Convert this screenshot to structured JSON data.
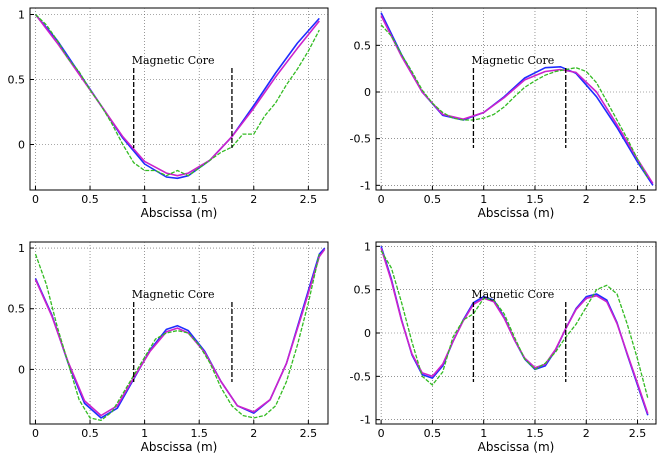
{
  "chart_data": [
    {
      "type": "line",
      "xlabel": "Abscissa (m)",
      "ylabel": "",
      "xlim": [
        -0.05,
        2.68
      ],
      "ylim": [
        -0.35,
        1.05
      ],
      "xticks": [
        "0",
        "0.5",
        "1",
        "1.5",
        "2",
        "2.5"
      ],
      "yticks": [
        "0",
        "0.5",
        "1"
      ],
      "grid": true,
      "annotation": {
        "text": "Magnetic Core",
        "x_start": 0.9,
        "x_end": 1.8
      },
      "series": [
        {
          "color": "#1f2cff",
          "x": [
            0,
            0.2,
            0.4,
            0.6,
            0.8,
            1.0,
            1.2,
            1.3,
            1.4,
            1.6,
            1.8,
            2.0,
            2.2,
            2.4,
            2.6
          ],
          "y": [
            1.0,
            0.8,
            0.55,
            0.3,
            0.05,
            -0.15,
            -0.25,
            -0.26,
            -0.24,
            -0.12,
            0.06,
            0.3,
            0.55,
            0.78,
            0.97
          ]
        },
        {
          "color": "#cc22cc",
          "x": [
            0,
            0.2,
            0.4,
            0.6,
            0.8,
            1.0,
            1.2,
            1.3,
            1.4,
            1.6,
            1.8,
            2.0,
            2.2,
            2.4,
            2.6
          ],
          "y": [
            1.0,
            0.78,
            0.54,
            0.3,
            0.06,
            -0.13,
            -0.22,
            -0.24,
            -0.22,
            -0.12,
            0.06,
            0.28,
            0.52,
            0.74,
            0.95
          ]
        },
        {
          "color": "#33bb22",
          "dashed": true,
          "x": [
            0,
            0.1,
            0.2,
            0.3,
            0.4,
            0.5,
            0.6,
            0.7,
            0.8,
            0.9,
            1.0,
            1.1,
            1.2,
            1.3,
            1.4,
            1.5,
            1.6,
            1.7,
            1.8,
            1.9,
            2.0,
            2.1,
            2.2,
            2.3,
            2.4,
            2.5,
            2.6
          ],
          "y": [
            1.0,
            0.92,
            0.8,
            0.66,
            0.56,
            0.42,
            0.3,
            0.16,
            0.0,
            -0.14,
            -0.2,
            -0.2,
            -0.24,
            -0.2,
            -0.24,
            -0.18,
            -0.12,
            -0.06,
            -0.02,
            0.08,
            0.08,
            0.22,
            0.32,
            0.46,
            0.58,
            0.72,
            0.88
          ]
        }
      ]
    },
    {
      "type": "line",
      "xlabel": "Abscissa (m)",
      "ylabel": "",
      "xlim": [
        -0.05,
        2.68
      ],
      "ylim": [
        -1.05,
        0.9
      ],
      "xticks": [
        "0",
        "0.5",
        "1",
        "1.5",
        "2",
        "2.5"
      ],
      "yticks": [
        "-1",
        "-0.5",
        "0",
        "0.5"
      ],
      "grid": true,
      "annotation": {
        "text": "Magnetic Core",
        "x_start": 0.9,
        "x_end": 1.8
      },
      "series": [
        {
          "color": "#1f2cff",
          "x": [
            0,
            0.2,
            0.4,
            0.6,
            0.8,
            1.0,
            1.2,
            1.4,
            1.6,
            1.75,
            1.9,
            2.1,
            2.3,
            2.5,
            2.65
          ],
          "y": [
            0.85,
            0.4,
            0.0,
            -0.25,
            -0.3,
            -0.22,
            -0.05,
            0.15,
            0.26,
            0.27,
            0.2,
            -0.05,
            -0.38,
            -0.75,
            -1.0
          ]
        },
        {
          "color": "#cc22cc",
          "x": [
            0,
            0.2,
            0.4,
            0.6,
            0.8,
            1.0,
            1.2,
            1.4,
            1.6,
            1.75,
            1.9,
            2.1,
            2.3,
            2.5,
            2.65
          ],
          "y": [
            0.82,
            0.38,
            0.0,
            -0.24,
            -0.29,
            -0.22,
            -0.06,
            0.13,
            0.22,
            0.24,
            0.21,
            0.0,
            -0.35,
            -0.72,
            -0.98
          ]
        },
        {
          "color": "#33bb22",
          "dashed": true,
          "x": [
            0,
            0.1,
            0.2,
            0.3,
            0.4,
            0.5,
            0.6,
            0.7,
            0.8,
            0.9,
            1.0,
            1.1,
            1.2,
            1.3,
            1.4,
            1.5,
            1.6,
            1.7,
            1.8,
            1.9,
            2.0,
            2.1,
            2.2,
            2.3,
            2.4,
            2.5,
            2.6
          ],
          "y": [
            0.72,
            0.6,
            0.4,
            0.22,
            0.02,
            -0.12,
            -0.22,
            -0.28,
            -0.3,
            -0.3,
            -0.28,
            -0.24,
            -0.16,
            -0.05,
            0.05,
            0.12,
            0.18,
            0.22,
            0.24,
            0.26,
            0.22,
            0.1,
            -0.1,
            -0.3,
            -0.5,
            -0.72,
            -0.92
          ]
        }
      ]
    },
    {
      "type": "line",
      "xlabel": "Abscissa (m)",
      "ylabel": "",
      "xlim": [
        -0.05,
        2.68
      ],
      "ylim": [
        -0.45,
        1.05
      ],
      "xticks": [
        "0",
        "0.5",
        "1",
        "1.5",
        "2",
        "2.5"
      ],
      "yticks": [
        "0",
        "0.5",
        "1"
      ],
      "grid": true,
      "annotation": {
        "text": "Magnetic Core",
        "x_start": 0.9,
        "x_end": 1.8
      },
      "series": [
        {
          "color": "#1f2cff",
          "x": [
            0,
            0.15,
            0.3,
            0.45,
            0.6,
            0.75,
            0.9,
            1.05,
            1.2,
            1.3,
            1.4,
            1.55,
            1.7,
            1.85,
            2.0,
            2.15,
            2.3,
            2.45,
            2.6,
            2.65
          ],
          "y": [
            0.75,
            0.45,
            0.05,
            -0.28,
            -0.4,
            -0.32,
            -0.08,
            0.16,
            0.33,
            0.36,
            0.32,
            0.15,
            -0.1,
            -0.3,
            -0.36,
            -0.25,
            0.05,
            0.5,
            0.95,
            1.0
          ]
        },
        {
          "color": "#cc22cc",
          "x": [
            0,
            0.15,
            0.3,
            0.45,
            0.6,
            0.75,
            0.9,
            1.05,
            1.2,
            1.3,
            1.4,
            1.55,
            1.7,
            1.85,
            2.0,
            2.15,
            2.3,
            2.45,
            2.6,
            2.65
          ],
          "y": [
            0.74,
            0.44,
            0.06,
            -0.26,
            -0.38,
            -0.3,
            -0.07,
            0.15,
            0.31,
            0.34,
            0.3,
            0.14,
            -0.1,
            -0.3,
            -0.35,
            -0.25,
            0.05,
            0.48,
            0.93,
            0.99
          ]
        },
        {
          "color": "#33bb22",
          "dashed": true,
          "x": [
            0,
            0.1,
            0.2,
            0.3,
            0.4,
            0.5,
            0.6,
            0.7,
            0.8,
            0.9,
            1.0,
            1.1,
            1.2,
            1.3,
            1.4,
            1.5,
            1.6,
            1.7,
            1.8,
            1.9,
            2.0,
            2.1,
            2.2,
            2.3,
            2.4,
            2.5,
            2.6
          ],
          "y": [
            0.95,
            0.7,
            0.35,
            0.05,
            -0.25,
            -0.4,
            -0.42,
            -0.35,
            -0.2,
            -0.05,
            0.1,
            0.25,
            0.3,
            0.32,
            0.3,
            0.2,
            0.05,
            -0.15,
            -0.3,
            -0.38,
            -0.4,
            -0.38,
            -0.3,
            -0.1,
            0.2,
            0.55,
            0.95
          ]
        }
      ]
    },
    {
      "type": "line",
      "xlabel": "Abscissa (m)",
      "ylabel": "",
      "xlim": [
        -0.05,
        2.68
      ],
      "ylim": [
        -1.05,
        1.05
      ],
      "xticks": [
        "0",
        "0.5",
        "1",
        "1.5",
        "2",
        "2.5"
      ],
      "yticks": [
        "-1",
        "-0.5",
        "0",
        "0.5",
        "1"
      ],
      "grid": true,
      "annotation": {
        "text": "Magnetic Core",
        "x_start": 0.9,
        "x_end": 1.8
      },
      "series": [
        {
          "color": "#1f2cff",
          "x": [
            0,
            0.1,
            0.2,
            0.3,
            0.4,
            0.5,
            0.6,
            0.7,
            0.8,
            0.9,
            1.0,
            1.1,
            1.2,
            1.3,
            1.4,
            1.5,
            1.6,
            1.7,
            1.8,
            1.9,
            2.0,
            2.1,
            2.2,
            2.3,
            2.4,
            2.5,
            2.6
          ],
          "y": [
            1.0,
            0.62,
            0.15,
            -0.25,
            -0.48,
            -0.52,
            -0.38,
            -0.1,
            0.15,
            0.35,
            0.42,
            0.38,
            0.18,
            -0.08,
            -0.3,
            -0.42,
            -0.38,
            -0.2,
            0.05,
            0.28,
            0.42,
            0.45,
            0.38,
            0.12,
            -0.25,
            -0.6,
            -0.95
          ]
        },
        {
          "color": "#cc22cc",
          "x": [
            0,
            0.1,
            0.2,
            0.3,
            0.4,
            0.5,
            0.6,
            0.7,
            0.8,
            0.9,
            1.0,
            1.1,
            1.2,
            1.3,
            1.4,
            1.5,
            1.6,
            1.7,
            1.8,
            1.9,
            2.0,
            2.1,
            2.2,
            2.3,
            2.4,
            2.5,
            2.6
          ],
          "y": [
            0.98,
            0.6,
            0.14,
            -0.24,
            -0.46,
            -0.5,
            -0.36,
            -0.1,
            0.14,
            0.33,
            0.4,
            0.36,
            0.17,
            -0.08,
            -0.29,
            -0.4,
            -0.36,
            -0.19,
            0.05,
            0.27,
            0.4,
            0.43,
            0.36,
            0.11,
            -0.24,
            -0.58,
            -0.93
          ]
        },
        {
          "color": "#33bb22",
          "dashed": true,
          "x": [
            0,
            0.1,
            0.2,
            0.3,
            0.4,
            0.5,
            0.6,
            0.7,
            0.8,
            0.9,
            1.0,
            1.1,
            1.2,
            1.3,
            1.4,
            1.5,
            1.6,
            1.7,
            1.8,
            1.9,
            2.0,
            2.1,
            2.2,
            2.3,
            2.4,
            2.5,
            2.6
          ],
          "y": [
            0.95,
            0.75,
            0.35,
            -0.1,
            -0.5,
            -0.6,
            -0.45,
            -0.05,
            0.15,
            0.22,
            0.4,
            0.38,
            0.22,
            -0.05,
            -0.3,
            -0.42,
            -0.35,
            -0.22,
            -0.05,
            0.1,
            0.3,
            0.5,
            0.55,
            0.45,
            0.1,
            -0.3,
            -0.75
          ]
        }
      ]
    }
  ]
}
